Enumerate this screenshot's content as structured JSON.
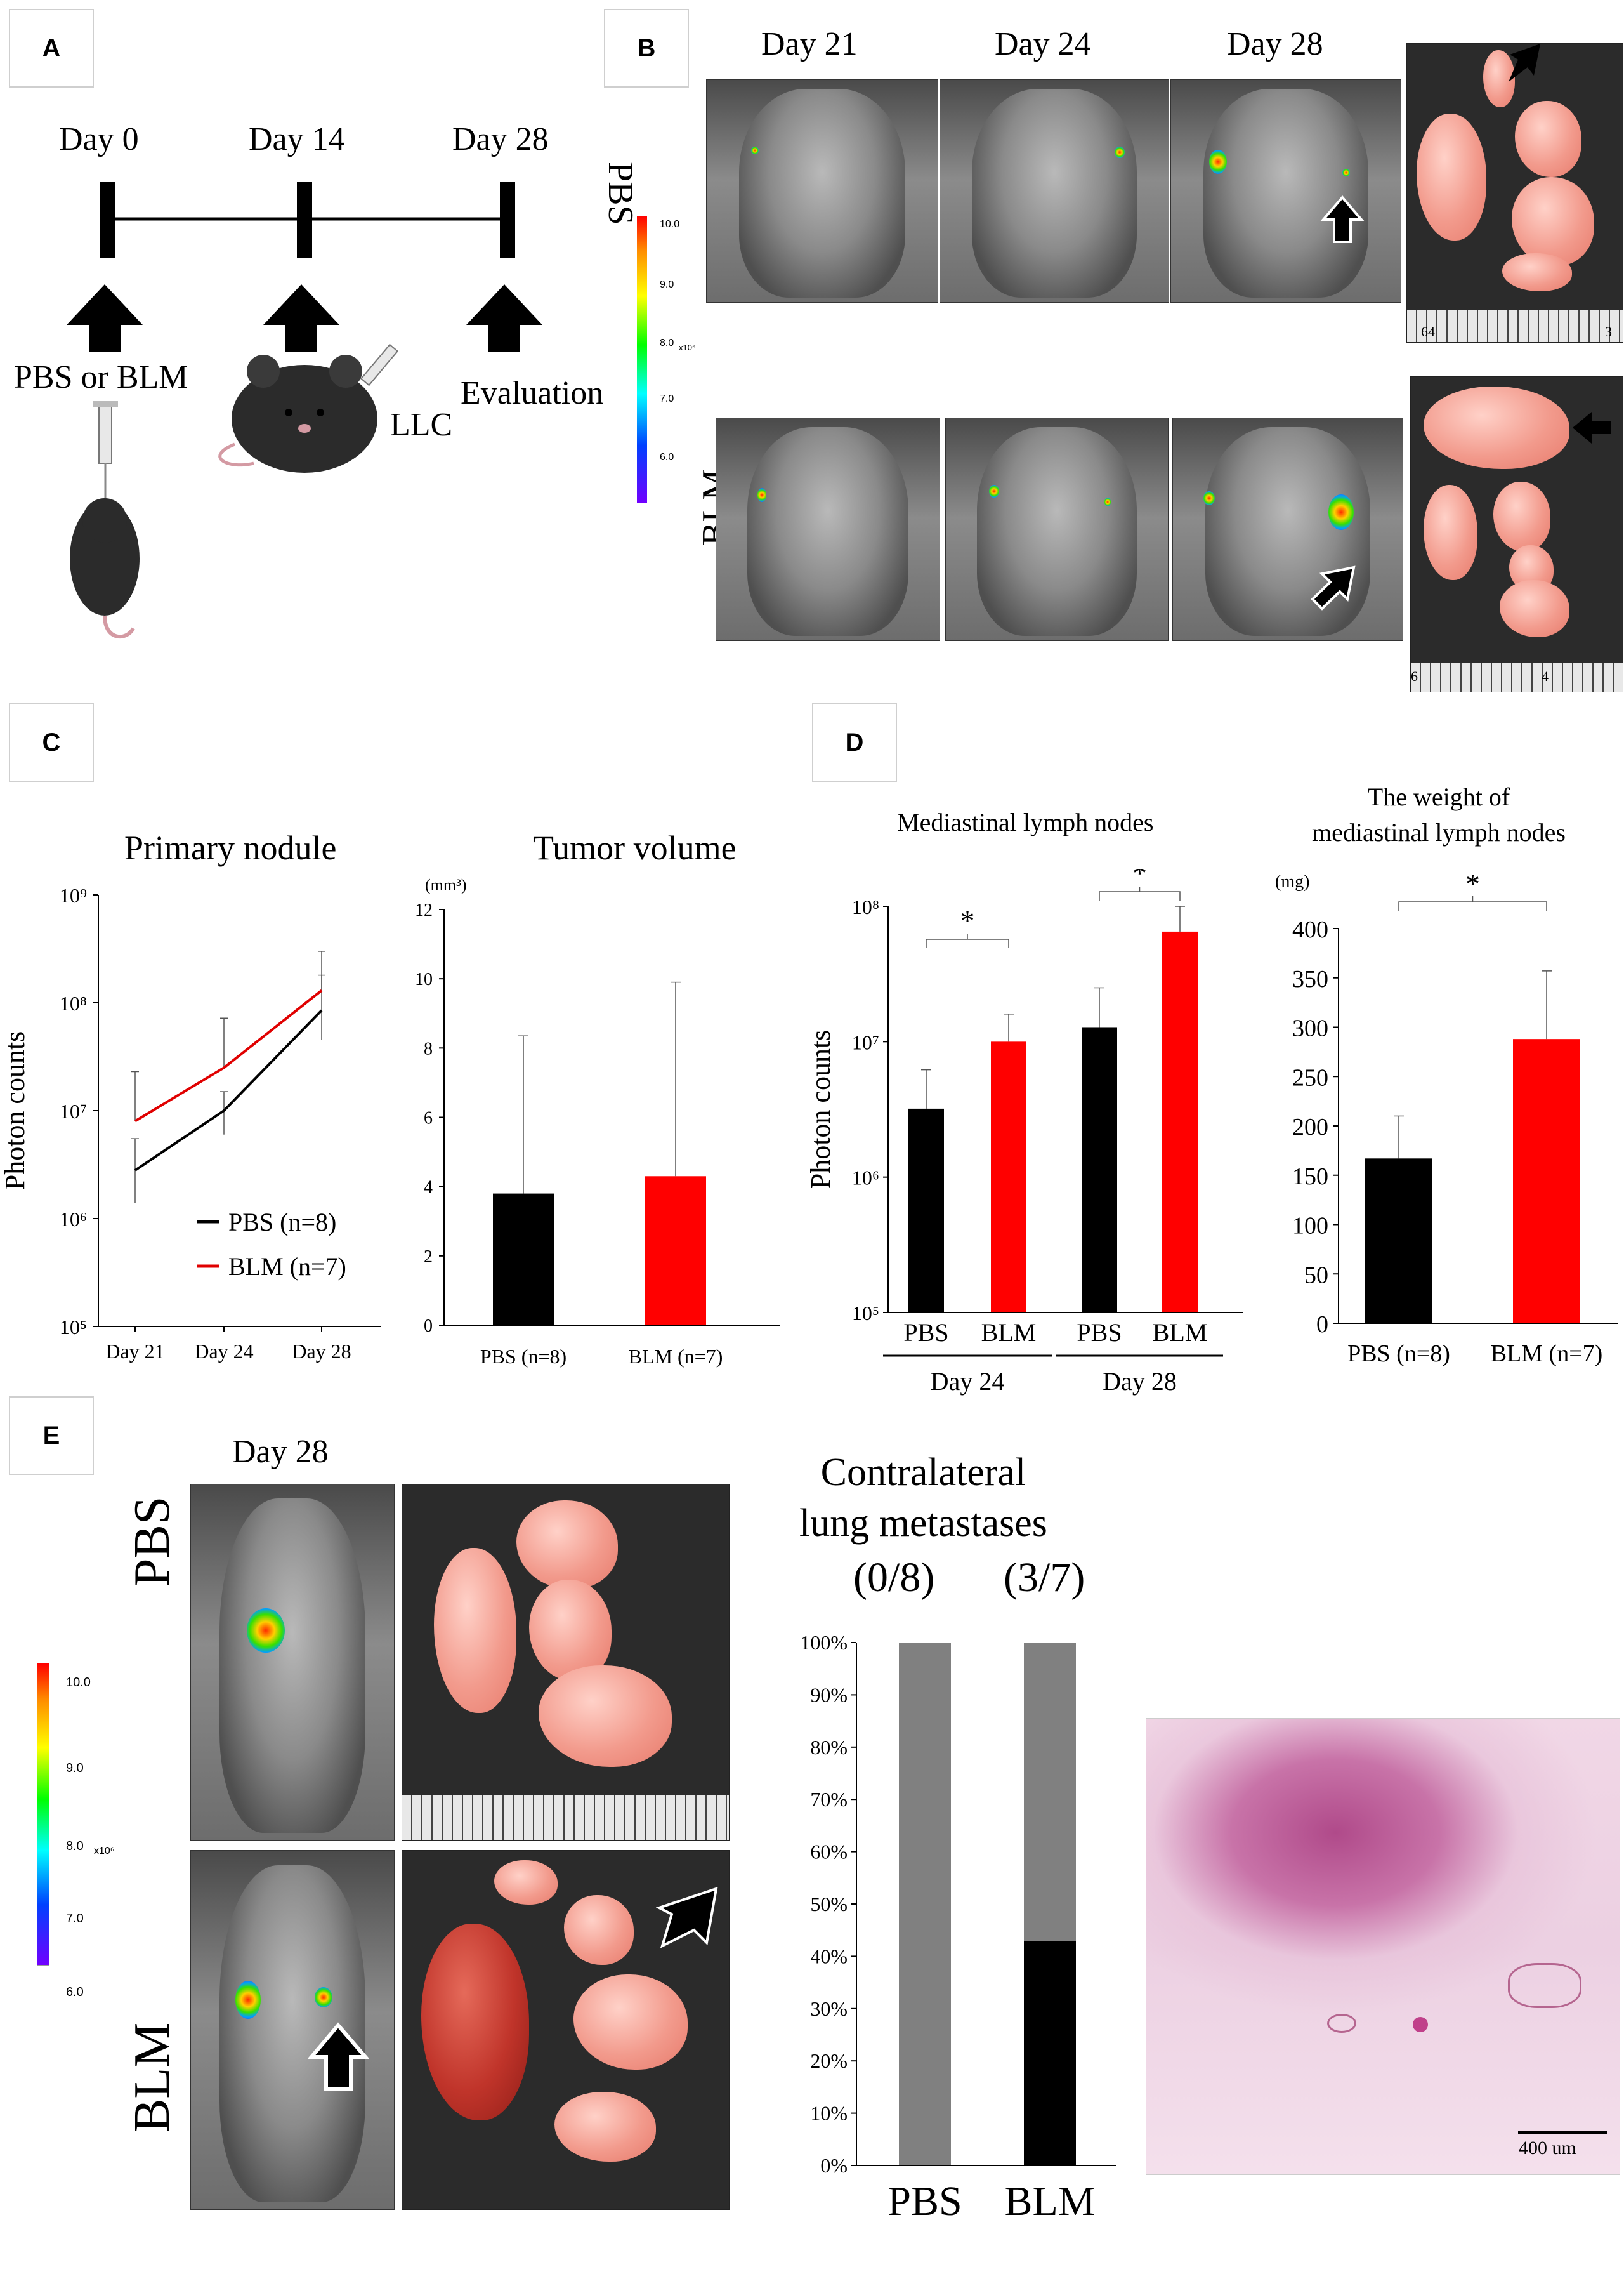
{
  "panels": {
    "a": "A",
    "b": "B",
    "c": "C",
    "d": "D",
    "e": "E"
  },
  "panel_a": {
    "days": [
      "Day 0",
      "Day 14",
      "Day 28"
    ],
    "labels": {
      "injection": "PBS or BLM",
      "llc": "LLC",
      "evaluation": "Evaluation"
    }
  },
  "panel_b": {
    "days": [
      "Day 21",
      "Day 24",
      "Day 28"
    ],
    "rows": [
      "PBS",
      "BLM"
    ],
    "colorbar": {
      "ticks": [
        "10.0",
        "9.0",
        "8.0",
        "7.0",
        "6.0"
      ],
      "unit": "x10⁶"
    },
    "ruler_marks": [
      "64",
      "3",
      "6",
      "4"
    ]
  },
  "panel_e": {
    "day": "Day 28",
    "rows": [
      "PBS",
      "BLM"
    ],
    "colorbar": {
      "ticks": [
        "10.0",
        "9.0",
        "8.0",
        "7.0",
        "6.0"
      ],
      "unit": "x10⁶"
    },
    "scale_bar": "400 um"
  },
  "chart_data": [
    {
      "id": "primary-nodule",
      "type": "line",
      "title": "Primary nodule",
      "ylabel": "Photon counts",
      "yscale": "log",
      "ylim": [
        100000,
        1000000000
      ],
      "yticks": [
        "10⁵",
        "10⁶",
        "10⁷",
        "10⁸",
        "10⁹"
      ],
      "categories": [
        "Day 21",
        "Day 24",
        "Day 28"
      ],
      "series": [
        {
          "name": "PBS (n=8)",
          "color": "#000000",
          "values": [
            2800000,
            10000000,
            85000000
          ],
          "err_hi": [
            5500000,
            15000000,
            180000000
          ],
          "err_lo": [
            1400000,
            6000000,
            45000000
          ]
        },
        {
          "name": "BLM (n=7)",
          "color": "#e00000",
          "values": [
            8000000,
            25000000,
            130000000
          ],
          "err_hi": [
            23000000,
            72000000,
            300000000
          ],
          "err_lo": [
            8000000,
            25000000,
            130000000
          ]
        }
      ],
      "legend": "bottom-right"
    },
    {
      "id": "tumor-volume",
      "type": "bar",
      "title": "Tumor volume",
      "yunit": "(mm³)",
      "ylim": [
        0,
        12
      ],
      "yticks": [
        0,
        2,
        4,
        6,
        8,
        10,
        12
      ],
      "categories": [
        "PBS (n=8)",
        "BLM (n=7)"
      ],
      "values": [
        3.8,
        4.3
      ],
      "errors": [
        4.55,
        5.6
      ],
      "colors": [
        "#000000",
        "#ff0000"
      ]
    },
    {
      "id": "mediastinal-lymph-nodes",
      "type": "bar",
      "title": "Mediastinal lymph nodes",
      "ylabel": "Photon counts",
      "yscale": "log",
      "ylim": [
        100000,
        100000000
      ],
      "yticks": [
        "10⁵",
        "10⁶",
        "10⁷",
        "10⁸"
      ],
      "categories": [
        "PBS",
        "BLM",
        "PBS",
        "BLM"
      ],
      "groups": [
        "Day 24",
        "Day 28"
      ],
      "values": [
        3200000,
        10000000,
        12800000,
        65000000
      ],
      "errors_hi": [
        6200000,
        16000000,
        25000000,
        100000000
      ],
      "colors": [
        "#000000",
        "#ff0000",
        "#000000",
        "#ff0000"
      ],
      "significance": [
        "*",
        "*"
      ]
    },
    {
      "id": "lymph-node-weight",
      "type": "bar",
      "title": "The weight of\nmediastinal lymph nodes",
      "yunit": "(mg)",
      "ylim": [
        0,
        400
      ],
      "yticks": [
        0,
        50,
        100,
        150,
        200,
        250,
        300,
        350,
        400
      ],
      "categories": [
        "PBS (n=8)",
        "BLM (n=7)"
      ],
      "values": [
        167,
        288
      ],
      "errors": [
        43,
        69
      ],
      "colors": [
        "#000000",
        "#ff0000"
      ],
      "significance": [
        "*"
      ]
    },
    {
      "id": "contralateral-metastases",
      "type": "bar",
      "title": "Contralateral\nlung metastases",
      "stacked": true,
      "ylim": [
        0,
        100
      ],
      "yticks": [
        "0%",
        "10%",
        "20%",
        "30%",
        "40%",
        "50%",
        "60%",
        "70%",
        "80%",
        "90%",
        "100%"
      ],
      "categories": [
        "PBS",
        "BLM"
      ],
      "counts": [
        "(0/8)",
        "(3/7)"
      ],
      "series": [
        {
          "color": "#000000",
          "values": [
            0,
            42.9
          ]
        },
        {
          "color": "#808080",
          "values": [
            100,
            57.1
          ]
        }
      ]
    }
  ]
}
